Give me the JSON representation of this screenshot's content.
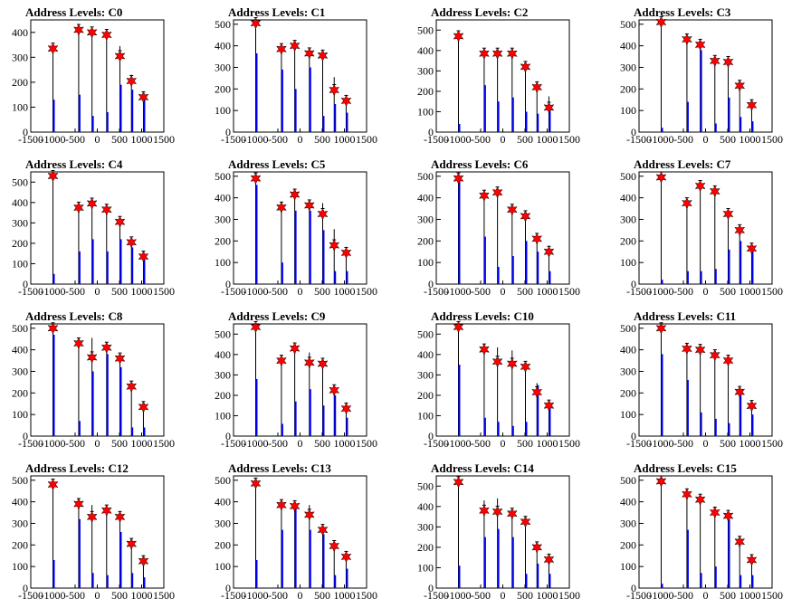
{
  "chart_data": [
    {
      "title": "Address Levels: C0",
      "type": "bar",
      "xlim": [
        -1500,
        1500
      ],
      "ylim": [
        0,
        450
      ],
      "xticks": [
        "-1500",
        "-1000",
        "-500",
        "0",
        "500",
        "1000",
        "1500"
      ],
      "yticks": [
        "0",
        "100",
        "200",
        "300",
        "400"
      ],
      "x": [
        -1000,
        -420,
        -120,
        210,
        510,
        770,
        1040
      ],
      "star": [
        335,
        410,
        400,
        390,
        305,
        205,
        140
      ],
      "black": [
        350,
        420,
        408,
        398,
        345,
        230,
        155
      ],
      "blue": [
        130,
        150,
        65,
        80,
        190,
        170,
        140
      ]
    },
    {
      "title": "Address Levels: C1",
      "type": "bar",
      "xlim": [
        -1500,
        1500
      ],
      "ylim": [
        0,
        520
      ],
      "xticks": [
        "-1500",
        "-1000",
        "-500",
        "0",
        "500",
        "1000",
        "1500"
      ],
      "yticks": [
        "0",
        "100",
        "200",
        "300",
        "400",
        "500"
      ],
      "x": [
        -1000,
        -420,
        -120,
        210,
        510,
        770,
        1040
      ],
      "star": [
        505,
        385,
        400,
        365,
        355,
        195,
        145
      ],
      "black": [
        510,
        395,
        408,
        375,
        365,
        255,
        165
      ],
      "blue": [
        365,
        290,
        200,
        300,
        75,
        130,
        90
      ]
    },
    {
      "title": "Address Levels: C2",
      "type": "bar",
      "xlim": [
        -1500,
        1500
      ],
      "ylim": [
        0,
        550
      ],
      "xticks": [
        "-1500",
        "-1000",
        "-500",
        "0",
        "500",
        "1000",
        "1500"
      ],
      "yticks": [
        "0",
        "100",
        "200",
        "300",
        "400",
        "500"
      ],
      "x": [
        -1000,
        -420,
        -120,
        210,
        510,
        770,
        1040
      ],
      "star": [
        470,
        385,
        385,
        385,
        320,
        220,
        120
      ],
      "black": [
        480,
        395,
        392,
        395,
        330,
        235,
        175
      ],
      "blue": [
        40,
        230,
        150,
        170,
        100,
        90,
        110
      ]
    },
    {
      "title": "Address Levels: C3",
      "type": "bar",
      "xlim": [
        -1500,
        1500
      ],
      "ylim": [
        0,
        520
      ],
      "xticks": [
        "-1500",
        "-1000",
        "-500",
        "0",
        "500",
        "1000",
        "1500"
      ],
      "yticks": [
        "0",
        "100",
        "200",
        "300",
        "400",
        "500"
      ],
      "x": [
        -1000,
        -420,
        -120,
        210,
        510,
        770,
        1040
      ],
      "star": [
        510,
        430,
        405,
        330,
        325,
        215,
        125
      ],
      "black": [
        520,
        440,
        412,
        345,
        335,
        225,
        140
      ],
      "blue": [
        20,
        140,
        380,
        40,
        160,
        70,
        50
      ]
    },
    {
      "title": "Address Levels: C4",
      "type": "bar",
      "xlim": [
        -1500,
        1500
      ],
      "ylim": [
        0,
        550
      ],
      "xticks": [
        "-1500",
        "-1000",
        "-500",
        "0",
        "500",
        "1000",
        "1500"
      ],
      "yticks": [
        "0",
        "100",
        "200",
        "300",
        "400",
        "500"
      ],
      "x": [
        -1000,
        -420,
        -120,
        210,
        510,
        770,
        1040
      ],
      "star": [
        530,
        375,
        395,
        365,
        305,
        205,
        135
      ],
      "black": [
        540,
        385,
        405,
        375,
        320,
        215,
        145
      ],
      "blue": [
        50,
        160,
        220,
        160,
        220,
        180,
        120
      ]
    },
    {
      "title": "Address Levels: C5",
      "type": "bar",
      "xlim": [
        -1500,
        1500
      ],
      "ylim": [
        0,
        520
      ],
      "xticks": [
        "-1500",
        "-1000",
        "-500",
        "0",
        "500",
        "1000",
        "1500"
      ],
      "yticks": [
        "0",
        "100",
        "200",
        "300",
        "400",
        "500"
      ],
      "x": [
        -1000,
        -420,
        -120,
        210,
        510,
        770,
        1040
      ],
      "star": [
        490,
        355,
        415,
        365,
        325,
        180,
        145
      ],
      "black": [
        495,
        365,
        420,
        372,
        375,
        255,
        155
      ],
      "blue": [
        460,
        100,
        340,
        340,
        250,
        60,
        60
      ]
    },
    {
      "title": "Address Levels: C6",
      "type": "bar",
      "xlim": [
        -1500,
        1500
      ],
      "ylim": [
        0,
        520
      ],
      "xticks": [
        "-1500",
        "-1000",
        "-500",
        "0",
        "500",
        "1000",
        "1500"
      ],
      "yticks": [
        "0",
        "100",
        "200",
        "300",
        "400",
        "500"
      ],
      "x": [
        -1000,
        -420,
        -120,
        210,
        510,
        770,
        1040
      ],
      "star": [
        490,
        410,
        425,
        345,
        315,
        210,
        150
      ],
      "black": [
        500,
        420,
        432,
        355,
        325,
        220,
        160
      ],
      "blue": [
        480,
        220,
        80,
        130,
        200,
        150,
        60
      ]
    },
    {
      "title": "Address Levels: C7",
      "type": "bar",
      "xlim": [
        -1500,
        1500
      ],
      "ylim": [
        0,
        520
      ],
      "xticks": [
        "-1500",
        "-1000",
        "-500",
        "0",
        "500",
        "1000",
        "1500"
      ],
      "yticks": [
        "0",
        "100",
        "200",
        "300",
        "400",
        "500"
      ],
      "x": [
        -1000,
        -420,
        -120,
        210,
        510,
        770,
        1040
      ],
      "star": [
        495,
        375,
        455,
        430,
        325,
        250,
        165
      ],
      "black": [
        505,
        385,
        462,
        440,
        335,
        260,
        175
      ],
      "blue": [
        20,
        60,
        60,
        70,
        160,
        200,
        160
      ]
    },
    {
      "title": "Address Levels: C8",
      "type": "bar",
      "xlim": [
        -1500,
        1500
      ],
      "ylim": [
        0,
        520
      ],
      "xticks": [
        "-1500",
        "-1000",
        "-500",
        "0",
        "500",
        "1000",
        "1500"
      ],
      "yticks": [
        "0",
        "100",
        "200",
        "300",
        "400",
        "500"
      ],
      "x": [
        -1000,
        -420,
        -120,
        210,
        510,
        770,
        1040
      ],
      "star": [
        500,
        430,
        365,
        410,
        360,
        230,
        135
      ],
      "black": [
        505,
        440,
        455,
        420,
        370,
        240,
        145
      ],
      "blue": [
        470,
        70,
        300,
        380,
        320,
        40,
        40
      ]
    },
    {
      "title": "Address Levels: C9",
      "type": "bar",
      "xlim": [
        -1500,
        1500
      ],
      "ylim": [
        0,
        550
      ],
      "xticks": [
        "-1500",
        "-1000",
        "-500",
        "0",
        "500",
        "1000",
        "1500"
      ],
      "yticks": [
        "0",
        "100",
        "200",
        "300",
        "400",
        "500"
      ],
      "x": [
        -1000,
        -420,
        -120,
        210,
        510,
        770,
        1040
      ],
      "star": [
        535,
        370,
        430,
        360,
        355,
        225,
        135
      ],
      "black": [
        545,
        380,
        440,
        410,
        365,
        235,
        165
      ],
      "blue": [
        280,
        60,
        170,
        230,
        150,
        200,
        90
      ]
    },
    {
      "title": "Address Levels: C10",
      "type": "bar",
      "xlim": [
        -1500,
        1500
      ],
      "ylim": [
        0,
        550
      ],
      "xticks": [
        "-1500",
        "-1000",
        "-500",
        "0",
        "500",
        "1000",
        "1500"
      ],
      "yticks": [
        "0",
        "100",
        "200",
        "300",
        "400",
        "500"
      ],
      "x": [
        -1000,
        -420,
        -120,
        210,
        510,
        770,
        1040
      ],
      "star": [
        535,
        425,
        365,
        355,
        340,
        215,
        150
      ],
      "black": [
        545,
        435,
        435,
        420,
        350,
        260,
        160
      ],
      "blue": [
        350,
        90,
        70,
        50,
        70,
        250,
        150
      ]
    },
    {
      "title": "Address Levels: C11",
      "type": "bar",
      "xlim": [
        -1500,
        1500
      ],
      "ylim": [
        0,
        520
      ],
      "xticks": [
        "-1500",
        "-1000",
        "-500",
        "0",
        "500",
        "1000",
        "1500"
      ],
      "yticks": [
        "0",
        "100",
        "200",
        "300",
        "400",
        "500"
      ],
      "x": [
        -1000,
        -420,
        -120,
        210,
        510,
        770,
        1040
      ],
      "star": [
        500,
        405,
        400,
        375,
        350,
        205,
        140
      ],
      "black": [
        510,
        415,
        410,
        385,
        360,
        215,
        150
      ],
      "blue": [
        380,
        260,
        110,
        80,
        60,
        200,
        100
      ]
    },
    {
      "title": "Address Levels: C12",
      "type": "bar",
      "xlim": [
        -1500,
        1500
      ],
      "ylim": [
        0,
        520
      ],
      "xticks": [
        "-1500",
        "-1000",
        "-500",
        "0",
        "500",
        "1000",
        "1500"
      ],
      "yticks": [
        "0",
        "100",
        "200",
        "300",
        "400",
        "500"
      ],
      "x": [
        -1000,
        -420,
        -120,
        210,
        510,
        770,
        1040
      ],
      "star": [
        480,
        390,
        330,
        360,
        330,
        205,
        125
      ],
      "black": [
        490,
        400,
        385,
        370,
        345,
        215,
        135
      ],
      "blue": [
        130,
        320,
        70,
        60,
        260,
        70,
        50
      ]
    },
    {
      "title": "Address Levels: C13",
      "type": "bar",
      "xlim": [
        -1500,
        1500
      ],
      "ylim": [
        0,
        520
      ],
      "xticks": [
        "-1500",
        "-1000",
        "-500",
        "0",
        "500",
        "1000",
        "1500"
      ],
      "yticks": [
        "0",
        "100",
        "200",
        "300",
        "400",
        "500"
      ],
      "x": [
        -1000,
        -420,
        -120,
        210,
        510,
        770,
        1040
      ],
      "star": [
        485,
        385,
        380,
        340,
        270,
        195,
        145
      ],
      "black": [
        495,
        395,
        390,
        385,
        280,
        205,
        160
      ],
      "blue": [
        130,
        270,
        370,
        270,
        250,
        60,
        90
      ]
    },
    {
      "title": "Address Levels: C14",
      "type": "bar",
      "xlim": [
        -1500,
        1500
      ],
      "ylim": [
        0,
        550
      ],
      "xticks": [
        "-1500",
        "-1000",
        "-500",
        "0",
        "500",
        "1000",
        "1500"
      ],
      "yticks": [
        "0",
        "100",
        "200",
        "300",
        "400",
        "500"
      ],
      "x": [
        -1000,
        -420,
        -120,
        210,
        510,
        770,
        1040
      ],
      "star": [
        520,
        380,
        375,
        365,
        325,
        200,
        140
      ],
      "black": [
        530,
        430,
        440,
        375,
        335,
        210,
        150
      ],
      "blue": [
        110,
        250,
        290,
        250,
        70,
        120,
        70
      ]
    },
    {
      "title": "Address Levels: C15",
      "type": "bar",
      "xlim": [
        -1500,
        1500
      ],
      "ylim": [
        0,
        520
      ],
      "xticks": [
        "-1500",
        "-1000",
        "-500",
        "0",
        "500",
        "1000",
        "1500"
      ],
      "yticks": [
        "0",
        "100",
        "200",
        "300",
        "400",
        "500"
      ],
      "x": [
        -1000,
        -420,
        -120,
        210,
        510,
        770,
        1040
      ],
      "star": [
        495,
        435,
        410,
        350,
        335,
        215,
        130
      ],
      "black": [
        505,
        445,
        420,
        360,
        345,
        225,
        140
      ],
      "blue": [
        20,
        270,
        70,
        100,
        320,
        60,
        60
      ]
    }
  ],
  "colors": {
    "star": "#ff0000",
    "blue_spike": "#0000ff",
    "black_spike": "#000000"
  }
}
